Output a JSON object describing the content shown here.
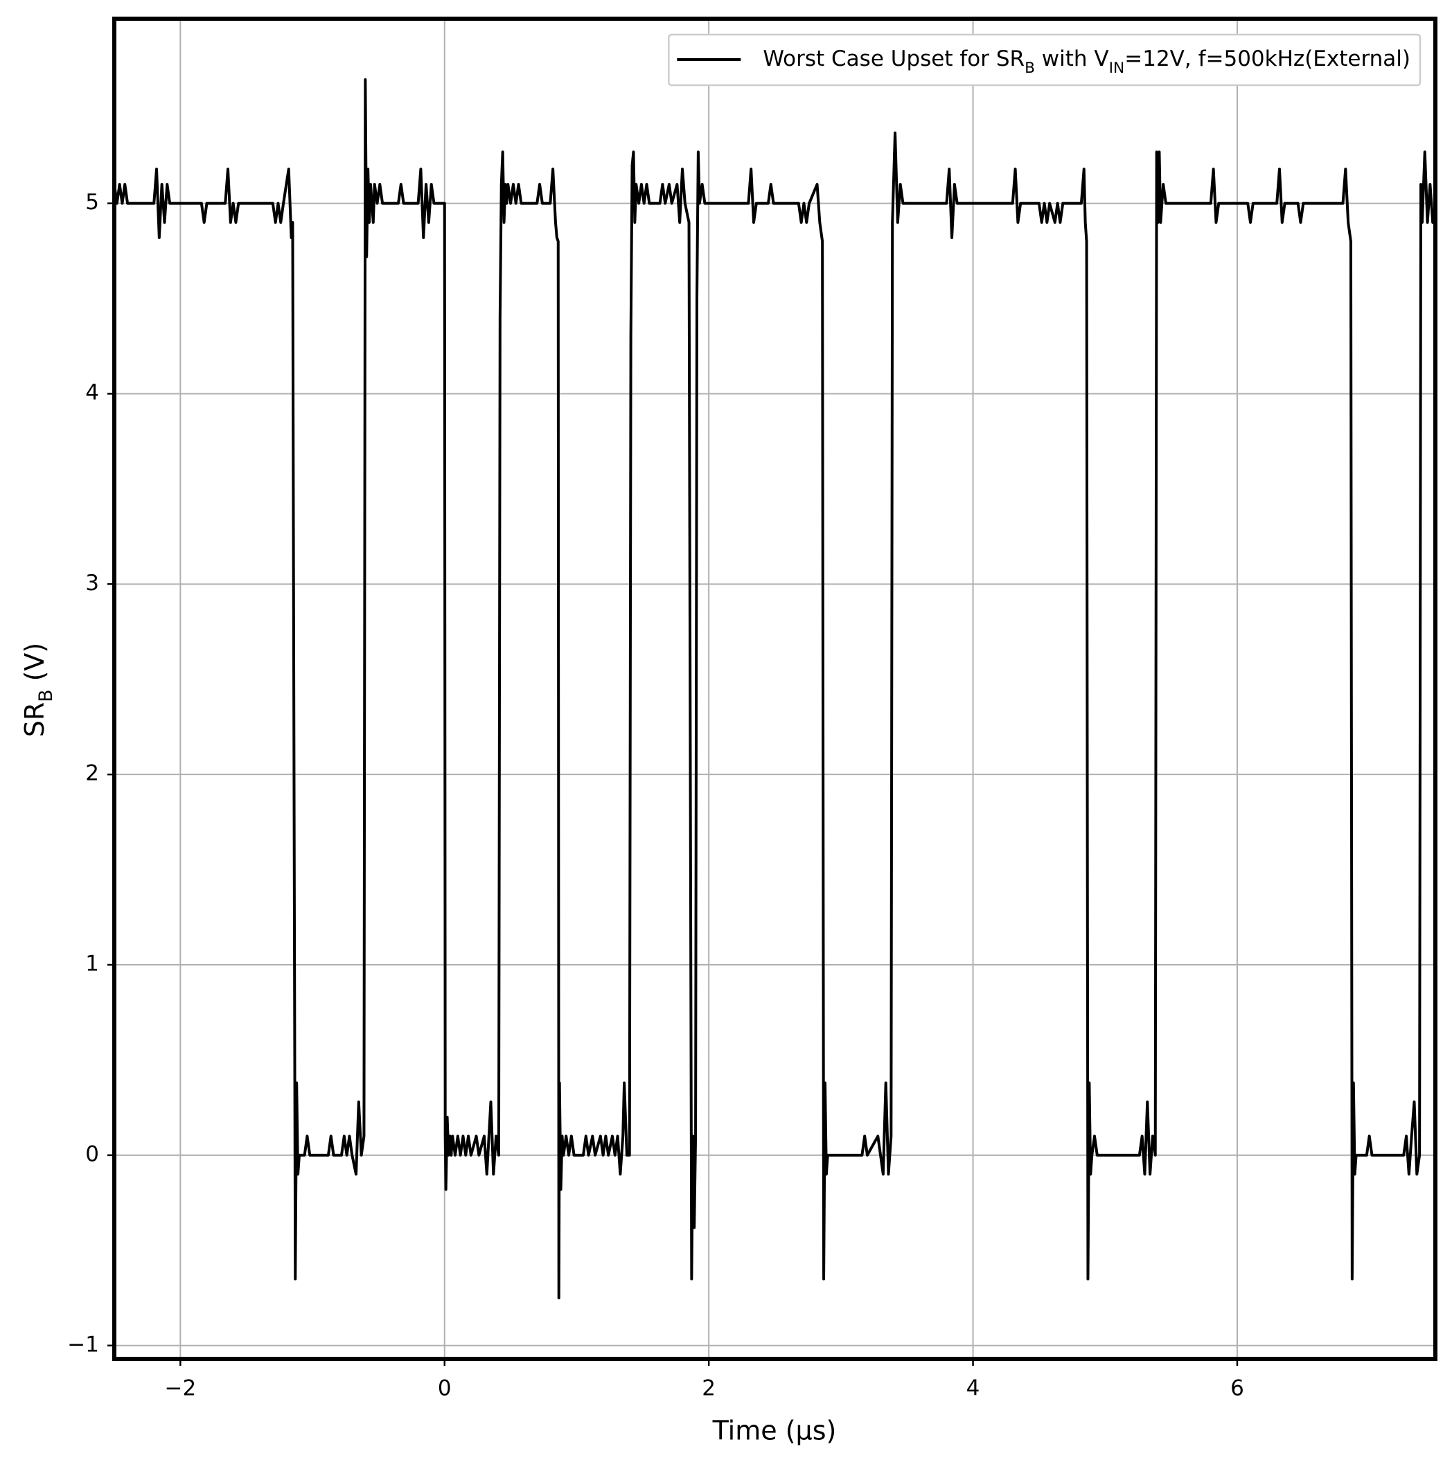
{
  "chart_data": {
    "type": "line",
    "xlabel": "Time (µs)",
    "ylabel": [
      "SR",
      {
        "sub": "B"
      },
      " (V)"
    ],
    "xlim": [
      -2.5,
      7.5
    ],
    "ylim": [
      -1.07,
      5.97
    ],
    "xticks": [
      {
        "value": -2,
        "label": "−2"
      },
      0,
      2,
      4,
      6
    ],
    "yticks": [
      {
        "value": -1,
        "label": "−1"
      },
      0,
      1,
      2,
      3,
      4,
      5
    ],
    "grid": true,
    "legend": "upper right",
    "x": [
      -2.5,
      -2.48,
      -2.46,
      -2.44,
      -2.42,
      -2.4,
      -2.2,
      -2.18,
      -2.16,
      -2.14,
      -2.12,
      -2.1,
      -2.08,
      -1.84,
      -1.82,
      -1.8,
      -1.66,
      -1.64,
      -1.62,
      -1.6,
      -1.58,
      -1.56,
      -1.3,
      -1.28,
      -1.26,
      -1.24,
      -1.22,
      -1.18,
      -1.16,
      -1.15,
      -1.13,
      -1.12,
      -1.11,
      -1.1,
      -1.06,
      -1.04,
      -1.02,
      -0.88,
      -0.86,
      -0.84,
      -0.78,
      -0.76,
      -0.74,
      -0.72,
      -0.7,
      -0.67,
      -0.65,
      -0.63,
      -0.61,
      -0.6,
      -0.59,
      -0.58,
      -0.57,
      -0.56,
      -0.54,
      -0.53,
      -0.51,
      -0.49,
      -0.47,
      -0.35,
      -0.33,
      -0.31,
      -0.2,
      -0.18,
      -0.16,
      -0.14,
      -0.12,
      -0.1,
      -0.08,
      0,
      0.005,
      0.01,
      0.02,
      0.03,
      0.04,
      0.05,
      0.06,
      0.08,
      0.1,
      0.12,
      0.14,
      0.16,
      0.18,
      0.2,
      0.24,
      0.26,
      0.3,
      0.32,
      0.35,
      0.37,
      0.39,
      0.41,
      0.42,
      0.43,
      0.44,
      0.45,
      0.46,
      0.47,
      0.48,
      0.5,
      0.52,
      0.54,
      0.56,
      0.58,
      0.7,
      0.72,
      0.74,
      0.8,
      0.82,
      0.84,
      0.85,
      0.86,
      0.865,
      0.87,
      0.88,
      0.89,
      0.9,
      0.92,
      0.94,
      0.96,
      0.98,
      1.05,
      1.07,
      1.09,
      1.12,
      1.14,
      1.18,
      1.2,
      1.22,
      1.24,
      1.27,
      1.29,
      1.31,
      1.33,
      1.35,
      1.36,
      1.38,
      1.4,
      1.41,
      1.42,
      1.43,
      1.44,
      1.45,
      1.47,
      1.49,
      1.51,
      1.53,
      1.55,
      1.63,
      1.65,
      1.67,
      1.7,
      1.72,
      1.76,
      1.78,
      1.8,
      1.82,
      1.85,
      1.87,
      1.88,
      1.89,
      1.9,
      1.91,
      1.92,
      1.93,
      1.95,
      1.97,
      2.3,
      2.32,
      2.34,
      2.36,
      2.45,
      2.47,
      2.49,
      2.68,
      2.7,
      2.72,
      2.74,
      2.76,
      2.82,
      2.84,
      2.86,
      2.87,
      2.88,
      2.89,
      2.9,
      3.16,
      3.18,
      3.2,
      3.28,
      3.3,
      3.32,
      3.34,
      3.36,
      3.38,
      3.39,
      3.41,
      3.43,
      3.45,
      3.47,
      3.8,
      3.82,
      3.84,
      3.86,
      3.88,
      4.3,
      4.32,
      4.34,
      4.36,
      4.5,
      4.52,
      4.54,
      4.56,
      4.58,
      4.62,
      4.64,
      4.66,
      4.68,
      4.82,
      4.84,
      4.85,
      4.86,
      4.87,
      4.88,
      4.89,
      4.9,
      4.92,
      4.94,
      5.26,
      5.28,
      5.3,
      5.32,
      5.34,
      5.36,
      5.38,
      5.39,
      5.4,
      5.41,
      5.42,
      5.44,
      5.46,
      5.8,
      5.82,
      5.84,
      5.86,
      6.08,
      6.1,
      6.12,
      6.3,
      6.32,
      6.34,
      6.36,
      6.46,
      6.48,
      6.5,
      6.8,
      6.82,
      6.84,
      6.86,
      6.87,
      6.88,
      6.89,
      6.9,
      6.98,
      7,
      7.02,
      7.26,
      7.28,
      7.3,
      7.32,
      7.34,
      7.36,
      7.38,
      7.39,
      7.4,
      7.42,
      7.44,
      7.46,
      7.48,
      7.5
    ],
    "series": [
      {
        "name": [
          "Worst Case Upset for SR",
          {
            "sub": "B"
          },
          " with V",
          {
            "sub": "IN"
          },
          "=12V, f=500kHz(External)"
        ],
        "color": "#000000",
        "values": [
          5.1,
          5,
          5.1,
          5,
          5.1,
          5,
          5,
          5.18,
          4.82,
          5.1,
          4.9,
          5.1,
          5,
          5,
          4.9,
          5,
          5,
          5.18,
          4.9,
          5,
          4.9,
          5,
          5,
          4.9,
          5,
          4.9,
          5,
          5.18,
          4.82,
          4.9,
          -0.65,
          0.38,
          -0.1,
          0,
          0,
          0.1,
          0,
          0,
          0.1,
          0,
          0,
          0.1,
          0,
          0.1,
          0,
          -0.1,
          0.28,
          0,
          0.1,
          5.65,
          4.72,
          5.18,
          4.9,
          5.1,
          4.9,
          5.1,
          5,
          5.1,
          5,
          5,
          5.1,
          5,
          5,
          5.18,
          4.82,
          5.1,
          4.9,
          5.1,
          5,
          5,
          0.1,
          -0.18,
          0.2,
          0,
          0.1,
          0,
          0.1,
          0,
          0.1,
          0,
          0.1,
          0,
          0.1,
          0,
          0.1,
          0,
          0.1,
          -0.1,
          0.28,
          -0.1,
          0.1,
          0,
          4.4,
          5.1,
          5.27,
          4.9,
          5.1,
          5,
          5.1,
          5,
          5.1,
          5,
          5.1,
          5,
          5,
          5.1,
          5,
          5,
          5.18,
          4.9,
          4.82,
          4.8,
          -0.75,
          0.38,
          -0.18,
          0.1,
          0,
          0.1,
          0,
          0.1,
          0,
          0,
          0.1,
          0,
          0.1,
          0,
          0.1,
          0,
          0.1,
          0,
          0.1,
          0,
          0.1,
          -0.1,
          0.1,
          0.38,
          0,
          0,
          4.3,
          5.2,
          5.27,
          4.9,
          5.1,
          5,
          5.1,
          5,
          5.1,
          5,
          5,
          5.1,
          5,
          5.1,
          5,
          5.1,
          4.9,
          5.18,
          5,
          4.9,
          -0.65,
          0.1,
          -0.38,
          0.1,
          4.5,
          5.27,
          5,
          5.1,
          5,
          5,
          5.18,
          4.9,
          5,
          5,
          5.1,
          5,
          5,
          4.9,
          5,
          4.9,
          5,
          5.1,
          4.9,
          4.8,
          -0.65,
          0.38,
          -0.1,
          0,
          0,
          0.1,
          0,
          0.1,
          0,
          -0.1,
          0.38,
          -0.1,
          0.1,
          4.9,
          5.37,
          4.9,
          5.1,
          5,
          5,
          5.18,
          4.82,
          5.1,
          5,
          5,
          5.18,
          4.9,
          5,
          5,
          4.9,
          5,
          4.9,
          5,
          4.9,
          5,
          4.9,
          5,
          5,
          5.18,
          4.9,
          4.8,
          -0.65,
          0.38,
          -0.1,
          0,
          0.1,
          0,
          0,
          0.1,
          -0.1,
          0.28,
          -0.1,
          0.1,
          0,
          5.27,
          4.9,
          5.27,
          4.9,
          5.1,
          5,
          5,
          5.18,
          4.9,
          5,
          5,
          4.9,
          5,
          5,
          5.18,
          4.9,
          5,
          5,
          4.9,
          5,
          5,
          5.18,
          4.9,
          4.8,
          -0.65,
          0.38,
          -0.1,
          0,
          0,
          0.1,
          0,
          0,
          0.1,
          -0.1,
          0.1,
          0.28,
          -0.1,
          0,
          5.1,
          4.9,
          5.27,
          4.9,
          5.1,
          4.9,
          5
        ]
      }
    ]
  }
}
